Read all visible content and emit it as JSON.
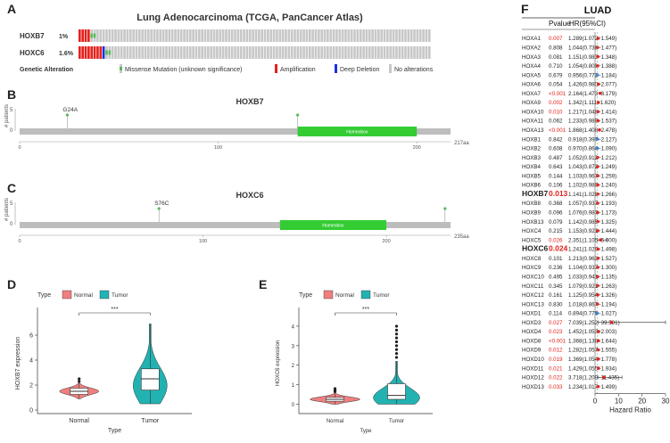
{
  "panels": {
    "A": "A",
    "B": "B",
    "C": "C",
    "D": "D",
    "E": "E",
    "F": "F"
  },
  "oncoprint": {
    "title": "Lung Adenocarcinoma (TCGA, PanCancer Atlas)",
    "genes": [
      {
        "name": "HOXB7",
        "pct": "1%",
        "alterations": [
          {
            "type": "amp",
            "count": 4
          },
          {
            "type": "mut",
            "count": 2
          }
        ]
      },
      {
        "name": "HOXC6",
        "pct": "1.6%",
        "alterations": [
          {
            "type": "amp",
            "count": 8
          },
          {
            "type": "del",
            "count": 1
          },
          {
            "type": "mut",
            "count": 2
          }
        ]
      }
    ],
    "legend_title": "Genetic Alteration",
    "legend": [
      {
        "label": "Missense Mutation (unknown significance)",
        "color": "#5cb85c",
        "kind": "mut"
      },
      {
        "label": "Amplification",
        "color": "#e3221b",
        "kind": "bar"
      },
      {
        "label": "Deep Deletion",
        "color": "#1b2fe3",
        "kind": "bar"
      },
      {
        "label": "No alterations",
        "color": "#c8c8c8",
        "kind": "bar"
      }
    ],
    "colors": {
      "amp": "#e3221b",
      "del": "#1b2fe3",
      "mut": "#5cb85c",
      "none": "#c8c8c8"
    }
  },
  "lollipops": [
    {
      "title": "HOXB7",
      "ylabel": "# patients",
      "ymax": "5",
      "ymin": "0",
      "length": 217,
      "ticks": [
        "0",
        "100",
        "200"
      ],
      "end_label": "217aa",
      "domain_label": "Homeobox",
      "domain_start": 140,
      "domain_end": 200,
      "mutations": [
        {
          "label": "G24A",
          "pos": 24,
          "height": 1
        },
        {
          "label": "",
          "pos": 140,
          "height": 1
        }
      ]
    },
    {
      "title": "HOXC6",
      "ylabel": "# patients",
      "ymax": "5",
      "ymin": "0",
      "length": 235,
      "ticks": [
        "0",
        "100",
        "200"
      ],
      "end_label": "235aa",
      "domain_label": "Homeobox",
      "domain_start": 142,
      "domain_end": 200,
      "mutations": [
        {
          "label": "S76C",
          "pos": 76,
          "height": 1
        },
        {
          "label": "",
          "pos": 232,
          "height": 1
        }
      ]
    }
  ],
  "chart_data": [
    {
      "type": "violin",
      "panel": "D",
      "title": "",
      "legend_title": "Type",
      "categories": [
        "Normal",
        "Tumor"
      ],
      "colors": [
        "#f07f7f",
        "#22b2b2"
      ],
      "xlabel": "Type",
      "ylabel": "HOXB7 expression",
      "ylim": [
        0,
        7.5
      ],
      "yticks": [
        0,
        2,
        4,
        6
      ],
      "box": [
        {
          "min": 0.9,
          "q1": 1.25,
          "median": 1.5,
          "q3": 1.75,
          "max": 2.2,
          "outliers": [
            2.3,
            2.5
          ]
        },
        {
          "min": 0.5,
          "q1": 1.6,
          "median": 2.5,
          "q3": 3.3,
          "max": 6.9,
          "outliers": []
        }
      ],
      "significance": "***"
    },
    {
      "type": "violin",
      "panel": "E",
      "title": "",
      "legend_title": "Type",
      "categories": [
        "Normal",
        "Tumor"
      ],
      "colors": [
        "#f07f7f",
        "#22b2b2"
      ],
      "xlabel": "Type",
      "ylabel": "HOXC6 expression",
      "ylim": [
        -0.3,
        4.5
      ],
      "yticks": [
        0,
        1,
        2,
        3,
        4
      ],
      "box": [
        {
          "min": 0.0,
          "q1": 0.15,
          "median": 0.25,
          "q3": 0.35,
          "max": 0.6,
          "outliers": [
            0.65,
            0.7,
            0.75,
            0.8
          ]
        },
        {
          "min": 0.0,
          "q1": 0.25,
          "median": 0.45,
          "q3": 1.05,
          "max": 2.2,
          "outliers": [
            2.4,
            2.6,
            2.8,
            3.0,
            3.2,
            3.4,
            3.6,
            3.8,
            4.0
          ]
        }
      ],
      "significance": "***"
    },
    {
      "type": "forest",
      "panel": "F",
      "title": "LUAD",
      "col_pvalue": "Pvalue",
      "col_hr": "HR(95%CI)",
      "xlabel": "Hazard Ratio",
      "xlim": [
        0,
        30
      ],
      "xticks": [
        0,
        10,
        20,
        30
      ],
      "rows": [
        {
          "gene": "HOXA1",
          "p": "0.007",
          "hr": "1.289(1.072−1.549)",
          "est": 1.289,
          "lo": 1.072,
          "hi": 1.549,
          "sig": true,
          "bold": false
        },
        {
          "gene": "HOXA2",
          "p": "0.808",
          "hr": "1.044(0.738−1.477)",
          "est": 1.044,
          "lo": 0.738,
          "hi": 1.477,
          "sig": false,
          "bold": false
        },
        {
          "gene": "HOXA3",
          "p": "0.081",
          "hr": "1.151(0.983−1.348)",
          "est": 1.151,
          "lo": 0.983,
          "hi": 1.348,
          "sig": false,
          "bold": false
        },
        {
          "gene": "HOXA4",
          "p": "0.710",
          "hr": "1.054(0.800−1.388)",
          "est": 1.054,
          "lo": 0.8,
          "hi": 1.388,
          "sig": false,
          "bold": false
        },
        {
          "gene": "HOXA5",
          "p": "0.679",
          "hr": "0.956(0.772−1.184)",
          "est": 0.956,
          "lo": 0.772,
          "hi": 1.184,
          "sig": false,
          "bold": false
        },
        {
          "gene": "HOXA6",
          "p": "0.054",
          "hr": "1.426(0.980−2.077)",
          "est": 1.426,
          "lo": 0.98,
          "hi": 2.077,
          "sig": false,
          "bold": false
        },
        {
          "gene": "HOXA7",
          "p": "<0.001",
          "hr": "2.164(1.473−3.179)",
          "est": 2.164,
          "lo": 1.473,
          "hi": 3.179,
          "sig": true,
          "bold": false
        },
        {
          "gene": "HOXA9",
          "p": "0.002",
          "hr": "1.342(1.111−1.620)",
          "est": 1.342,
          "lo": 1.111,
          "hi": 1.62,
          "sig": true,
          "bold": false
        },
        {
          "gene": "HOXA10",
          "p": "0.010",
          "hr": "1.217(1.048−1.414)",
          "est": 1.217,
          "lo": 1.048,
          "hi": 1.414,
          "sig": true,
          "bold": false
        },
        {
          "gene": "HOXA11",
          "p": "0.062",
          "hr": "1.233(0.989−1.537)",
          "est": 1.233,
          "lo": 0.989,
          "hi": 1.537,
          "sig": false,
          "bold": false
        },
        {
          "gene": "HOXA13",
          "p": "<0.001",
          "hr": "1.868(1.408−2.478)",
          "est": 1.868,
          "lo": 1.408,
          "hi": 2.478,
          "sig": true,
          "bold": false
        },
        {
          "gene": "HOXB1",
          "p": "0.842",
          "hr": "0.918(0.397−2.127)",
          "est": 0.918,
          "lo": 0.397,
          "hi": 2.127,
          "sig": false,
          "bold": false
        },
        {
          "gene": "HOXB2",
          "p": "0.608",
          "hr": "0.970(0.864−1.090)",
          "est": 0.97,
          "lo": 0.864,
          "hi": 1.09,
          "sig": false,
          "bold": false
        },
        {
          "gene": "HOXB3",
          "p": "0.487",
          "hr": "1.052(0.912−1.212)",
          "est": 1.052,
          "lo": 0.912,
          "hi": 1.212,
          "sig": false,
          "bold": false
        },
        {
          "gene": "HOXB4",
          "p": "0.643",
          "hr": "1.043(0.872−1.249)",
          "est": 1.043,
          "lo": 0.872,
          "hi": 1.249,
          "sig": false,
          "bold": false
        },
        {
          "gene": "HOXB5",
          "p": "0.144",
          "hr": "1.103(0.967−1.259)",
          "est": 1.103,
          "lo": 0.967,
          "hi": 1.259,
          "sig": false,
          "bold": false
        },
        {
          "gene": "HOXB6",
          "p": "0.106",
          "hr": "1.102(0.980−1.240)",
          "est": 1.102,
          "lo": 0.98,
          "hi": 1.24,
          "sig": false,
          "bold": false
        },
        {
          "gene": "HOXB7",
          "p": "0.013",
          "hr": "1.141(1.028−1.266)",
          "est": 1.141,
          "lo": 1.028,
          "hi": 1.266,
          "sig": true,
          "bold": true
        },
        {
          "gene": "HOXB8",
          "p": "0.368",
          "hr": "1.057(0.937−1.193)",
          "est": 1.057,
          "lo": 0.937,
          "hi": 1.193,
          "sig": false,
          "bold": false
        },
        {
          "gene": "HOXB9",
          "p": "0.096",
          "hr": "1.076(0.987−1.173)",
          "est": 1.076,
          "lo": 0.987,
          "hi": 1.173,
          "sig": false,
          "bold": false
        },
        {
          "gene": "HOXB13",
          "p": "0.079",
          "hr": "1.142(0.985−1.325)",
          "est": 1.142,
          "lo": 0.985,
          "hi": 1.325,
          "sig": false,
          "bold": false
        },
        {
          "gene": "HOXC4",
          "p": "0.215",
          "hr": "1.153(0.921−1.444)",
          "est": 1.153,
          "lo": 0.921,
          "hi": 1.444,
          "sig": false,
          "bold": false
        },
        {
          "gene": "HOXC5",
          "p": "0.026",
          "hr": "2.351(1.105−5.000)",
          "est": 2.351,
          "lo": 1.105,
          "hi": 5.0,
          "sig": true,
          "bold": false
        },
        {
          "gene": "HOXC6",
          "p": "0.024",
          "hr": "1.241(1.029−1.498)",
          "est": 1.241,
          "lo": 1.029,
          "hi": 1.498,
          "sig": true,
          "bold": true
        },
        {
          "gene": "HOXC8",
          "p": "0.101",
          "hr": "1.213(0.963−1.527)",
          "est": 1.213,
          "lo": 0.963,
          "hi": 1.527,
          "sig": false,
          "bold": false
        },
        {
          "gene": "HOXC9",
          "p": "0.236",
          "hr": "1.104(0.937−1.300)",
          "est": 1.104,
          "lo": 0.937,
          "hi": 1.3,
          "sig": false,
          "bold": false
        },
        {
          "gene": "HOXC10",
          "p": "0.495",
          "hr": "1.033(0.941−1.135)",
          "est": 1.033,
          "lo": 0.941,
          "hi": 1.135,
          "sig": false,
          "bold": false
        },
        {
          "gene": "HOXC11",
          "p": "0.345",
          "hr": "1.079(0.921−1.263)",
          "est": 1.079,
          "lo": 0.921,
          "hi": 1.263,
          "sig": false,
          "bold": false
        },
        {
          "gene": "HOXC12",
          "p": "0.161",
          "hr": "1.125(0.954−1.326)",
          "est": 1.125,
          "lo": 0.954,
          "hi": 1.326,
          "sig": false,
          "bold": false
        },
        {
          "gene": "HOXC13",
          "p": "0.830",
          "hr": "1.018(0.867−1.194)",
          "est": 1.018,
          "lo": 0.867,
          "hi": 1.194,
          "sig": false,
          "bold": false
        },
        {
          "gene": "HOXD1",
          "p": "0.114",
          "hr": "0.894(0.779−1.027)",
          "est": 0.894,
          "lo": 0.779,
          "hi": 1.027,
          "sig": false,
          "bold": false
        },
        {
          "gene": "HOXD3",
          "p": "0.027",
          "hr": "7.039(1.252−39.581)",
          "est": 7.039,
          "lo": 1.252,
          "hi": 39.581,
          "sig": true,
          "bold": false
        },
        {
          "gene": "HOXD4",
          "p": "0.023",
          "hr": "1.452(1.053−2.003)",
          "est": 1.452,
          "lo": 1.053,
          "hi": 2.003,
          "sig": true,
          "bold": false
        },
        {
          "gene": "HOXD8",
          "p": "<0.001",
          "hr": "1.368(1.138−1.644)",
          "est": 1.368,
          "lo": 1.138,
          "hi": 1.644,
          "sig": true,
          "bold": false
        },
        {
          "gene": "HOXD9",
          "p": "0.012",
          "hr": "1.282(1.057−1.555)",
          "est": 1.282,
          "lo": 1.057,
          "hi": 1.555,
          "sig": true,
          "bold": false
        },
        {
          "gene": "HOXD10",
          "p": "0.019",
          "hr": "1.369(1.054−1.778)",
          "est": 1.369,
          "lo": 1.054,
          "hi": 1.778,
          "sig": true,
          "bold": false
        },
        {
          "gene": "HOXD11",
          "p": "0.021",
          "hr": "1.429(1.055−1.934)",
          "est": 1.429,
          "lo": 1.055,
          "hi": 1.934,
          "sig": true,
          "bold": false
        },
        {
          "gene": "HOXD12",
          "p": "0.022",
          "hr": "3.718(1.209−11.435)",
          "est": 3.718,
          "lo": 1.209,
          "hi": 11.435,
          "sig": true,
          "bold": false
        },
        {
          "gene": "HOXD13",
          "p": "0.033",
          "hr": "1.234(1.017−1.499)",
          "est": 1.234,
          "lo": 1.017,
          "hi": 1.499,
          "sig": true,
          "bold": false
        }
      ]
    }
  ]
}
